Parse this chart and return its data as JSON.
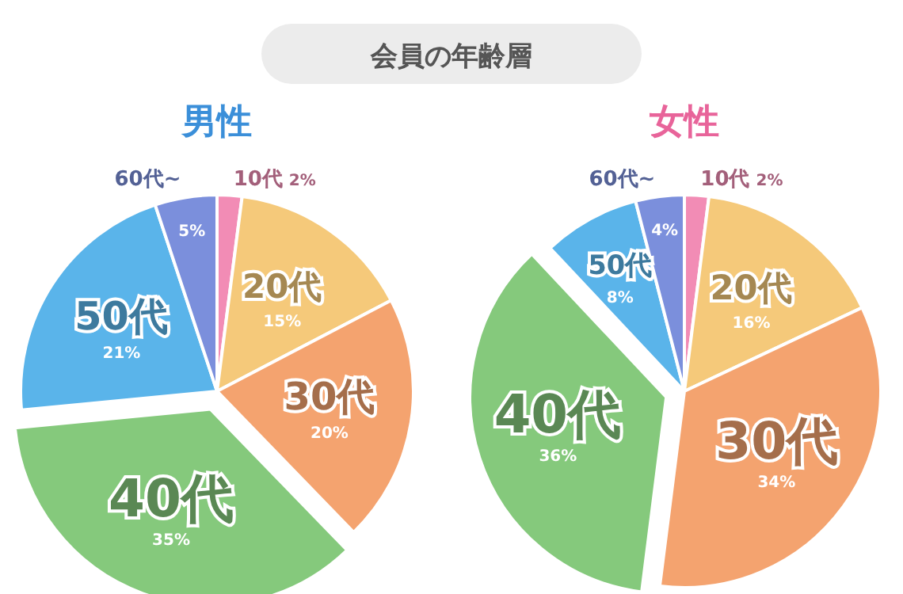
{
  "chart_data": [
    {
      "type": "pie",
      "title": "男性",
      "annotations": [
        "会員の年齢層"
      ],
      "categories": [
        "10代",
        "20代",
        "30代",
        "40代",
        "50代",
        "60代~"
      ],
      "values": [
        2,
        15,
        20,
        35,
        21,
        5
      ],
      "value_labels": [
        "2%",
        "15%",
        "20%",
        "35%",
        "21%",
        "5%"
      ],
      "colors": [
        "#f28cb5",
        "#f5c97a",
        "#f4a36f",
        "#85c97c",
        "#5ab4ea",
        "#7b8fdc"
      ]
    },
    {
      "type": "pie",
      "title": "女性",
      "categories": [
        "10代",
        "20代",
        "30代",
        "40代",
        "50代",
        "60代~"
      ],
      "values": [
        2,
        16,
        34,
        36,
        8,
        4
      ],
      "value_labels": [
        "2%",
        "16%",
        "34%",
        "36%",
        "8%",
        "4%"
      ],
      "colors": [
        "#f28cb5",
        "#f5c97a",
        "#f4a36f",
        "#85c97c",
        "#5ab4ea",
        "#7b8fdc"
      ]
    }
  ]
}
